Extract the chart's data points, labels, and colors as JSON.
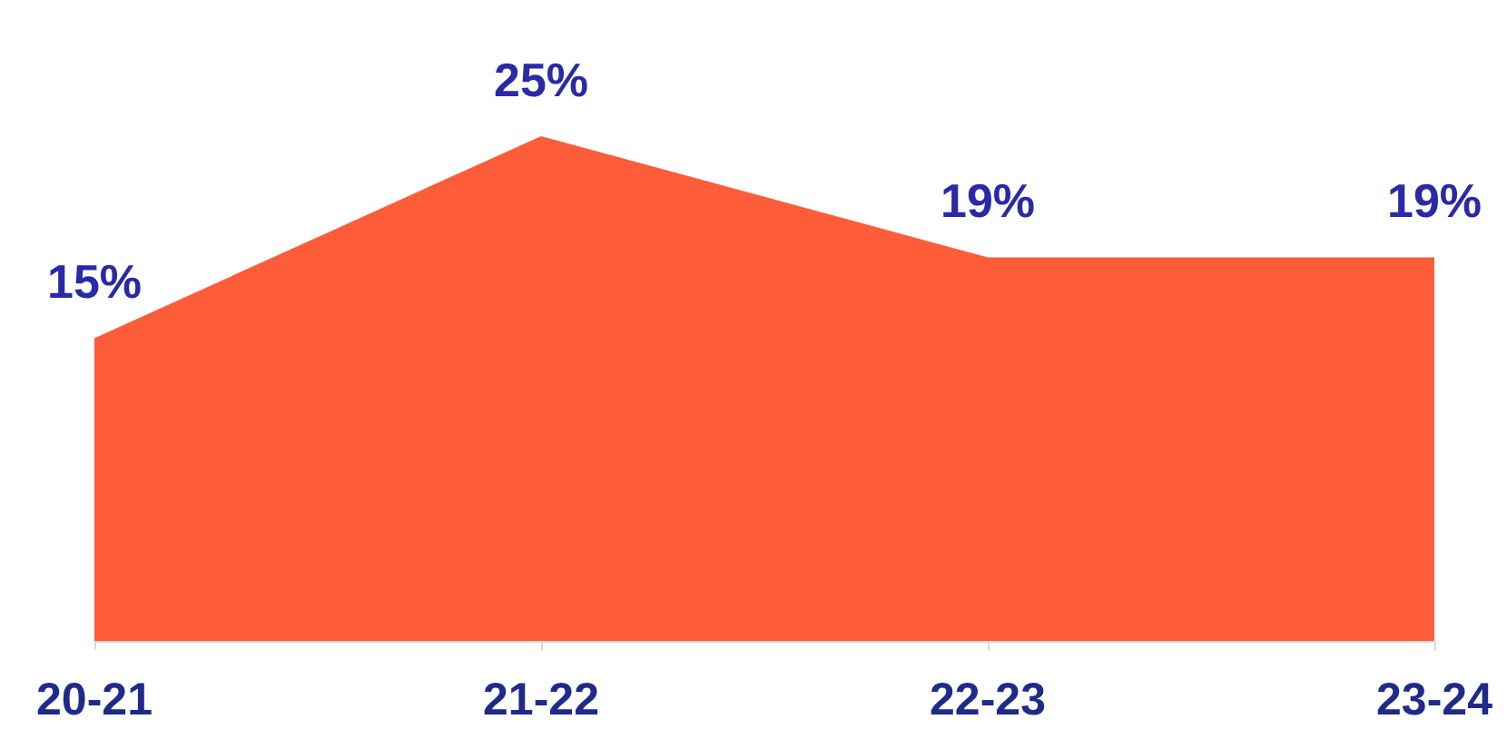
{
  "chart_data": {
    "type": "area",
    "categories": [
      "20-21",
      "21-22",
      "22-23",
      "23-24"
    ],
    "values": [
      15,
      25,
      19,
      19
    ],
    "value_labels": [
      "15%",
      "25%",
      "19%",
      "19%"
    ],
    "color": "#ff5c39",
    "tick_labels": "x",
    "marker": "none"
  }
}
